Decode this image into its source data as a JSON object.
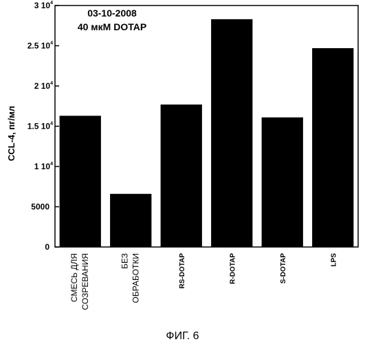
{
  "chart_data": {
    "type": "bar",
    "categories": [
      [
        "СМЕСЬ ДЛЯ",
        "СОЗРЕВАНИЯ"
      ],
      [
        "БЕЗ",
        "ОБРАБОТКИ"
      ],
      [
        "RS-DOTAP"
      ],
      [
        "R-DOTAP"
      ],
      [
        "S-DOTAP"
      ],
      [
        "LPS"
      ]
    ],
    "values": [
      16300,
      6600,
      17700,
      28300,
      16100,
      24700
    ],
    "ylabel": "CCL-4, пг/мл",
    "ylim": [
      0,
      30000
    ],
    "yticks": [
      {
        "value": 0,
        "label": "0"
      },
      {
        "value": 5000,
        "label": "5000"
      },
      {
        "value": 10000,
        "label": "1 10",
        "exp": "4"
      },
      {
        "value": 15000,
        "label": "1.5 10",
        "exp": "4"
      },
      {
        "value": 20000,
        "label": "2 10",
        "exp": "4"
      },
      {
        "value": 25000,
        "label": "2.5 10",
        "exp": "4"
      },
      {
        "value": 30000,
        "label": "3 10",
        "exp": "4"
      }
    ],
    "annotations": [
      "03-10-2008",
      "40 мкМ DOTAP"
    ],
    "grid": false,
    "bar_color": "#000000"
  },
  "caption": "ФИГ. 6"
}
